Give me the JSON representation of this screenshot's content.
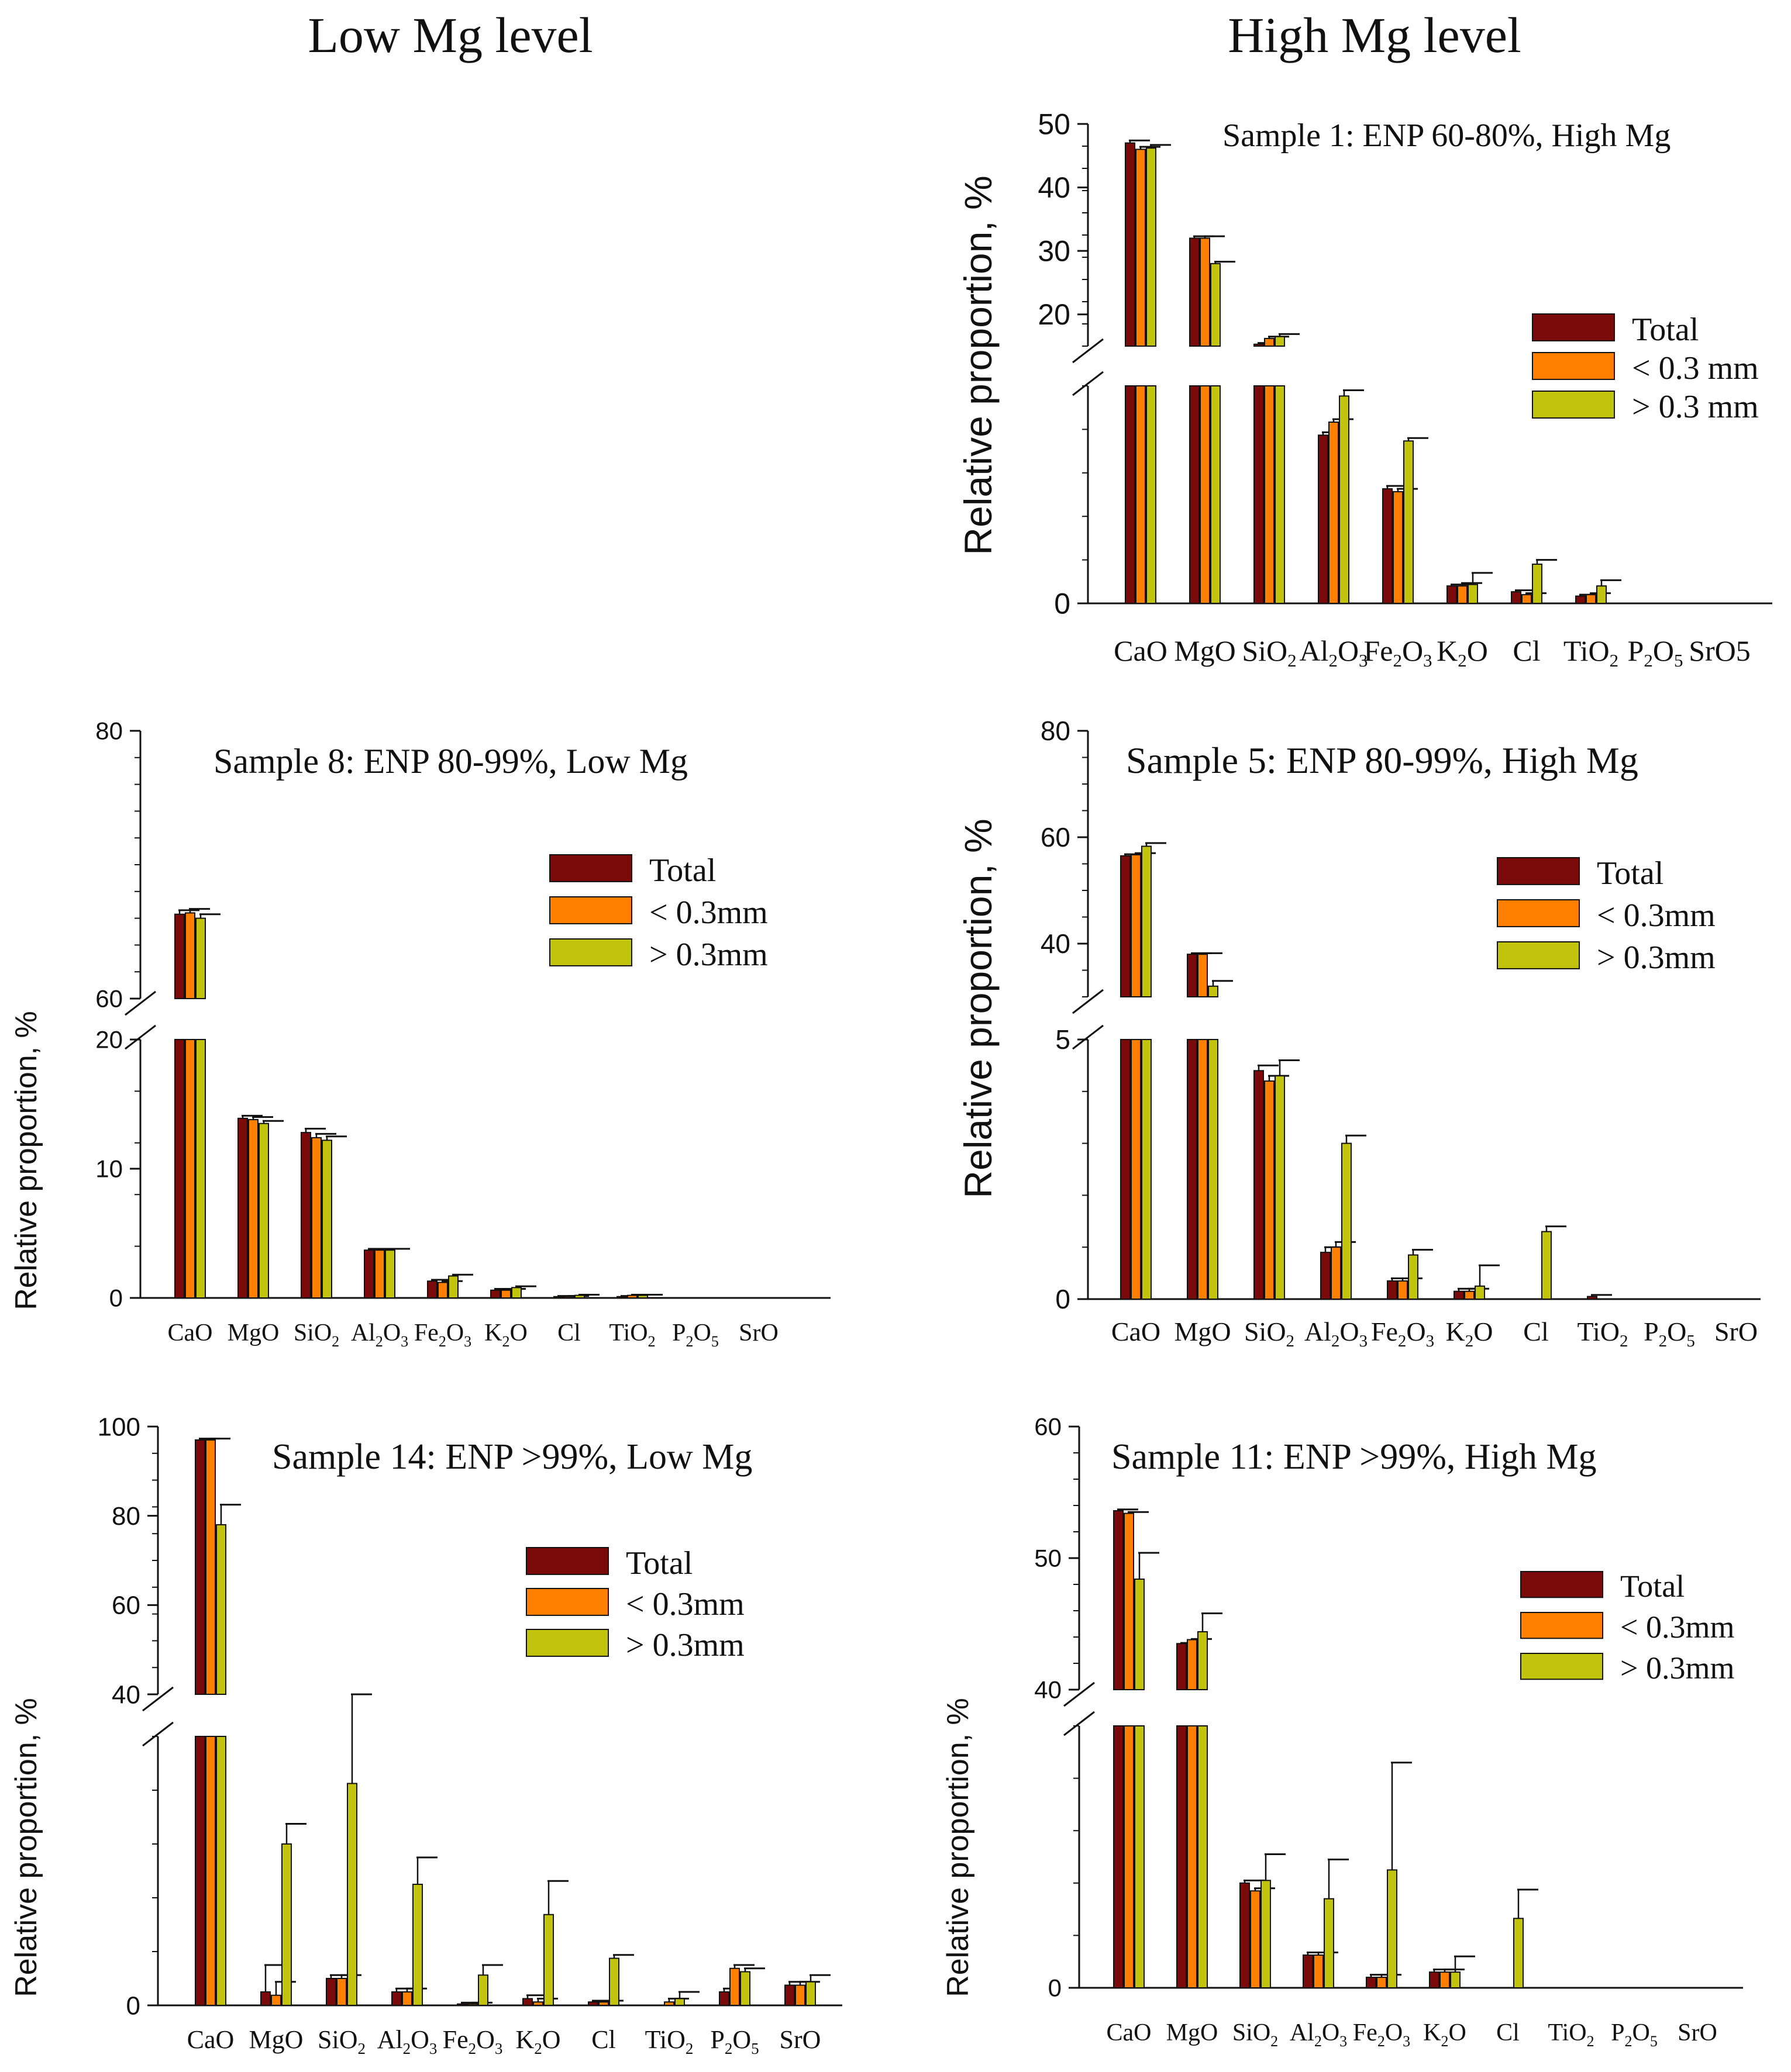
{
  "headers": {
    "left": "Low Mg level",
    "right": "High Mg level"
  },
  "series_colors": {
    "Total": "#7b0a0a",
    "< 0.3 mm": "#ff8000",
    "> 0.3 mm": "#c2c30c"
  },
  "chart_data": [
    {
      "id": "s1",
      "type": "bar",
      "panel_title": "Sample 1: ENP 60-80%, High Mg",
      "ylabel": "Relative proportion, %",
      "categories": [
        [
          "CaO"
        ],
        [
          "MgO"
        ],
        [
          "SiO",
          "2"
        ],
        [
          "Al",
          "2",
          "O",
          "3"
        ],
        [
          "Fe",
          "2",
          "O",
          "3"
        ],
        [
          "K",
          "2",
          "O"
        ],
        [
          "Cl"
        ],
        [
          "TiO",
          "2"
        ],
        [
          "P",
          "2",
          "O",
          "5"
        ],
        [
          "SrO5"
        ]
      ],
      "legend": [
        "Total",
        "< 0.3 mm",
        "> 0.3 mm"
      ],
      "upper_ticks": [
        "20",
        "30",
        "40",
        "50"
      ],
      "lower_ticks": [
        "0"
      ],
      "upper_range": [
        15,
        50
      ],
      "lower_range": [
        0,
        15
      ],
      "series": [
        {
          "name": "Total",
          "values": [
            47,
            32,
            15.3,
            11.6,
            7.9,
            1.2,
            0.8,
            0.5,
            0,
            0
          ],
          "errors": [
            0.4,
            0.3,
            0.2,
            0.2,
            0.2,
            0.1,
            0.1,
            0.1,
            0,
            0
          ]
        },
        {
          "name": "< 0.3 mm",
          "values": [
            46,
            32,
            16.2,
            12.5,
            7.7,
            1.2,
            0.6,
            0.6,
            0,
            0
          ],
          "errors": [
            0.4,
            0.3,
            0.3,
            0.2,
            0.2,
            0.2,
            0.1,
            0.1,
            0,
            0
          ]
        },
        {
          "name": "> 0.3 mm",
          "values": [
            46.2,
            28,
            16.5,
            14.3,
            11.2,
            1.3,
            2.7,
            1.2,
            0,
            0
          ],
          "errors": [
            0.5,
            0.3,
            0.4,
            0.4,
            0.2,
            0.8,
            0.3,
            0.4,
            0,
            0
          ]
        }
      ]
    },
    {
      "id": "s8",
      "type": "bar",
      "panel_title": "Sample 8: ENP 80-99%, Low Mg",
      "ylabel": "Relative proportion, %",
      "categories": [
        [
          "CaO"
        ],
        [
          "MgO"
        ],
        [
          "SiO",
          "2"
        ],
        [
          "Al",
          "2",
          "O",
          "3"
        ],
        [
          "Fe",
          "2",
          "O",
          "3"
        ],
        [
          "K",
          "2",
          "O"
        ],
        [
          "Cl"
        ],
        [
          "TiO",
          "2"
        ],
        [
          "P",
          "2",
          "O",
          "5"
        ],
        [
          "SrO"
        ]
      ],
      "legend": [
        "Total",
        "< 0.3mm",
        "> 0.3mm"
      ],
      "upper_ticks": [
        "60",
        "80"
      ],
      "lower_ticks": [
        "0",
        "10",
        "20"
      ],
      "upper_range": [
        60,
        80
      ],
      "lower_range": [
        0,
        20
      ],
      "series": [
        {
          "name": "Total",
          "values": [
            66.3,
            13.9,
            12.8,
            3.7,
            1.3,
            0.6,
            0.1,
            0.1,
            0,
            0
          ],
          "errors": [
            0.3,
            0.2,
            0.3,
            0.1,
            0.1,
            0.1,
            0.05,
            0.05,
            0,
            0
          ]
        },
        {
          "name": "< 0.3mm",
          "values": [
            66.4,
            13.8,
            12.4,
            3.7,
            1.2,
            0.6,
            0.1,
            0.2,
            0,
            0
          ],
          "errors": [
            0.3,
            0.2,
            0.3,
            0.1,
            0.1,
            0.1,
            0.05,
            0.05,
            0,
            0
          ]
        },
        {
          "name": "> 0.3mm",
          "values": [
            66.0,
            13.5,
            12.2,
            3.7,
            1.7,
            0.8,
            0.2,
            0.2,
            0,
            0
          ],
          "errors": [
            0.3,
            0.2,
            0.3,
            0.1,
            0.1,
            0.1,
            0.05,
            0.05,
            0,
            0
          ]
        }
      ]
    },
    {
      "id": "s5",
      "type": "bar",
      "panel_title": "Sample 5: ENP 80-99%, High Mg",
      "ylabel": "Relative proportion, %",
      "categories": [
        [
          "CaO"
        ],
        [
          "MgO"
        ],
        [
          "SiO",
          "2"
        ],
        [
          "Al",
          "2",
          "O",
          "3"
        ],
        [
          "Fe",
          "2",
          "O",
          "3"
        ],
        [
          "K",
          "2",
          "O"
        ],
        [
          "Cl"
        ],
        [
          "TiO",
          "2"
        ],
        [
          "P",
          "2",
          "O",
          "5"
        ],
        [
          "SrO"
        ]
      ],
      "legend": [
        "Total",
        "< 0.3mm",
        "> 0.3mm"
      ],
      "upper_ticks": [
        "40",
        "60",
        "80"
      ],
      "lower_ticks": [
        "0",
        "5"
      ],
      "upper_range": [
        30,
        80
      ],
      "lower_range": [
        0,
        5
      ],
      "series": [
        {
          "name": "Total",
          "values": [
            56.5,
            38,
            4.4,
            0.9,
            0.35,
            0.15,
            0,
            0.05,
            0,
            0
          ],
          "errors": [
            0.3,
            0.2,
            0.1,
            0.1,
            0.05,
            0.05,
            0,
            0.03,
            0,
            0
          ]
        },
        {
          "name": "< 0.3mm",
          "values": [
            56.7,
            38,
            4.2,
            1.0,
            0.35,
            0.15,
            0,
            0,
            0,
            0
          ],
          "errors": [
            0.3,
            0.2,
            0.1,
            0.1,
            0.05,
            0.05,
            0,
            0,
            0,
            0
          ]
        },
        {
          "name": "> 0.3mm",
          "values": [
            58.3,
            32,
            4.3,
            3.0,
            0.85,
            0.25,
            1.3,
            0,
            0,
            0
          ],
          "errors": [
            0.6,
            1.0,
            0.3,
            0.15,
            0.1,
            0.4,
            0.1,
            0,
            0,
            0
          ]
        }
      ]
    },
    {
      "id": "s14",
      "type": "bar",
      "panel_title": "Sample 14: ENP >99%, Low Mg",
      "ylabel": "Relative proportion, %",
      "categories": [
        [
          "CaO"
        ],
        [
          "MgO"
        ],
        [
          "SiO",
          "2"
        ],
        [
          "Al",
          "2",
          "O",
          "3"
        ],
        [
          "Fe",
          "2",
          "O",
          "3"
        ],
        [
          "K",
          "2",
          "O"
        ],
        [
          "Cl"
        ],
        [
          "TiO",
          "2"
        ],
        [
          "P",
          "2",
          "O",
          "5"
        ],
        [
          "SrO"
        ]
      ],
      "legend": [
        "Total",
        "< 0.3mm",
        "> 0.3mm"
      ],
      "upper_ticks": [
        "40",
        "60",
        "80",
        "100"
      ],
      "lower_ticks": [
        "0"
      ],
      "upper_range": [
        40,
        100
      ],
      "lower_range": [
        0,
        4
      ],
      "series": [
        {
          "name": "Total",
          "values": [
            97,
            0.2,
            0.4,
            0.2,
            0.02,
            0.1,
            0.05,
            0,
            0.2,
            0.3
          ],
          "errors": [
            0.3,
            0.4,
            0.05,
            0.05,
            0.02,
            0.05,
            0.02,
            0,
            0.05,
            0.05
          ]
        },
        {
          "name": "< 0.3mm",
          "values": [
            97,
            0.15,
            0.4,
            0.2,
            0.02,
            0.05,
            0.05,
            0.05,
            0.55,
            0.3
          ],
          "errors": [
            0.3,
            0.2,
            0.05,
            0.05,
            0.02,
            0.05,
            0.02,
            0.05,
            0.05,
            0.05
          ]
        },
        {
          "name": "> 0.3mm",
          "values": [
            78,
            2.4,
            3.3,
            1.8,
            0.45,
            1.35,
            0.7,
            0.1,
            0.5,
            0.35
          ],
          "errors": [
            4.5,
            0.3,
            1.3,
            0.4,
            0.15,
            0.5,
            0.05,
            0.1,
            0.05,
            0.1
          ]
        }
      ]
    },
    {
      "id": "s11",
      "type": "bar",
      "panel_title": "Sample 11: ENP >99%, High Mg",
      "ylabel": "Relative proportion, %",
      "categories": [
        [
          "CaO"
        ],
        [
          "MgO"
        ],
        [
          "SiO",
          "2"
        ],
        [
          "Al",
          "2",
          "O",
          "3"
        ],
        [
          "Fe",
          "2",
          "O",
          "3"
        ],
        [
          "K",
          "2",
          "O"
        ],
        [
          "Cl"
        ],
        [
          "TiO",
          "2"
        ],
        [
          "P",
          "2",
          "O",
          "5"
        ],
        [
          "SrO"
        ]
      ],
      "legend": [
        "Total",
        "< 0.3mm",
        "> 0.3mm"
      ],
      "upper_ticks": [
        "40",
        "50",
        "60"
      ],
      "lower_ticks": [
        "0"
      ],
      "upper_range": [
        40,
        60
      ],
      "lower_range": [
        0,
        2
      ],
      "series": [
        {
          "name": "Total",
          "values": [
            53.6,
            43.5,
            0.8,
            0.25,
            0.08,
            0.12,
            0,
            0,
            0,
            0
          ],
          "errors": [
            0.1,
            0.05,
            0.02,
            0.02,
            0.02,
            0.02,
            0,
            0,
            0,
            0
          ]
        },
        {
          "name": "< 0.3mm",
          "values": [
            53.4,
            43.8,
            0.74,
            0.25,
            0.08,
            0.12,
            0,
            0,
            0,
            0
          ],
          "errors": [
            0.1,
            0.05,
            0.02,
            0.02,
            0.02,
            0.02,
            0,
            0,
            0,
            0
          ]
        },
        {
          "name": "> 0.3mm",
          "values": [
            48.4,
            44.4,
            0.82,
            0.68,
            0.9,
            0.12,
            0.53,
            0,
            0,
            0
          ],
          "errors": [
            2.0,
            1.4,
            0.2,
            0.3,
            0.82,
            0.12,
            0.22,
            0,
            0,
            0
          ]
        }
      ]
    }
  ]
}
